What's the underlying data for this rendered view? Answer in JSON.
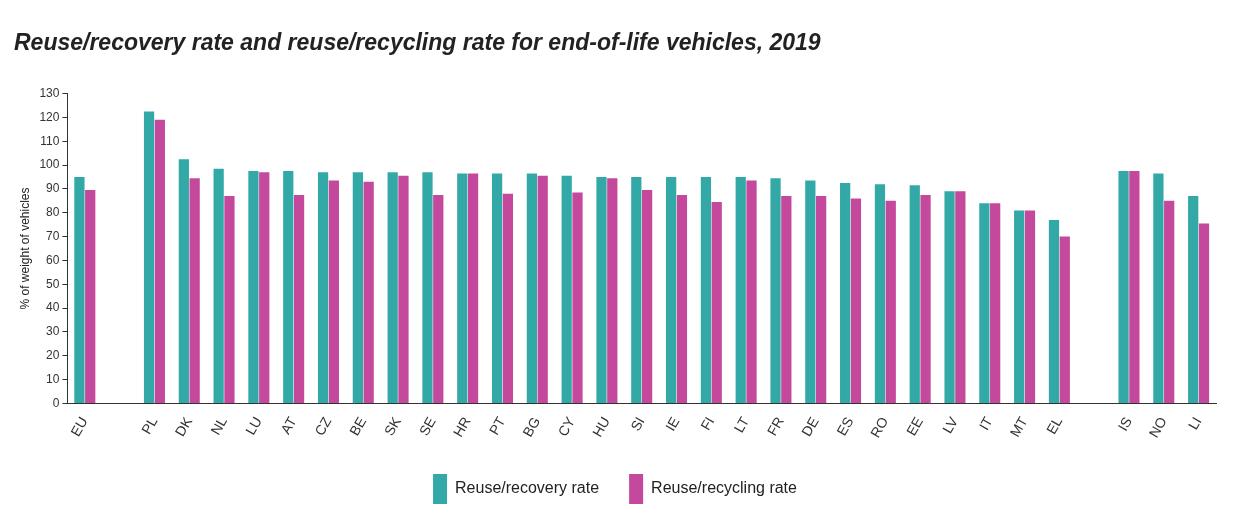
{
  "chart_data": {
    "type": "bar",
    "title": "Reuse/recovery rate and reuse/recycling rate for end-of-life vehicles, 2019",
    "y_label": "% of weight of vehicles",
    "categories": [
      "EU",
      null,
      "PL",
      "DK",
      "NL",
      "LU",
      "AT",
      "CZ",
      "BE",
      "SK",
      "SE",
      "HR",
      "PT",
      "BG",
      "CY",
      "HU",
      "SI",
      "IE",
      "FI",
      "LT",
      "FR",
      "DE",
      "ES",
      "RO",
      "EE",
      "LV",
      "IT",
      "MT",
      "EL",
      null,
      "IS",
      "NO",
      "LI"
    ],
    "series": [
      {
        "name": "Reuse/recovery rate",
        "color": "#33a9a7",
        "values": [
          95,
          null,
          122.5,
          102.5,
          98.5,
          97.5,
          97.5,
          97,
          97,
          97,
          97,
          96.5,
          96.5,
          96.5,
          95.5,
          95,
          95,
          95,
          95,
          95,
          94.5,
          93.5,
          92.5,
          92,
          91.5,
          89,
          84,
          81,
          77,
          null,
          97.5,
          96.5,
          87
        ]
      },
      {
        "name": "Reuse/recycling rate",
        "color": "#c4489b",
        "values": [
          89.5,
          null,
          119,
          94.5,
          87,
          97,
          87.5,
          93.5,
          93,
          95.5,
          87.5,
          96.5,
          88,
          95.5,
          88.5,
          94.5,
          89.5,
          87.5,
          84.5,
          93.5,
          87,
          87,
          86,
          85,
          87.5,
          89,
          84,
          81,
          70,
          null,
          97.5,
          85,
          75.5
        ]
      }
    ],
    "ylim": [
      0,
      130
    ],
    "yticks": [
      0,
      10,
      20,
      30,
      40,
      50,
      60,
      70,
      80,
      90,
      100,
      110,
      120,
      130
    ],
    "grid": false,
    "legend": "bottom"
  }
}
